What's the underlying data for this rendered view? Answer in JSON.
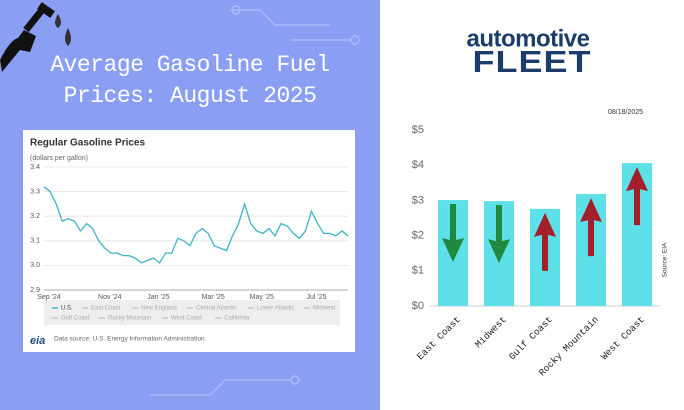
{
  "title": "Average Gasoline Fuel Prices: August 2025",
  "logo": {
    "top": "automotive",
    "bottom": "FLEET"
  },
  "date": "08/18/2025",
  "chart_data": [
    {
      "type": "line",
      "title": "Regular Gasoline Prices",
      "subtitle": "(dollars per gallon)",
      "categories": [
        "Sep '24",
        null,
        null,
        null,
        null,
        null,
        null,
        null,
        null,
        null,
        "Nov '24",
        null,
        null,
        null,
        null,
        null,
        null,
        null,
        "Jan '25",
        null,
        null,
        null,
        null,
        null,
        null,
        null,
        null,
        "Mar '25",
        null,
        null,
        null,
        null,
        null,
        null,
        null,
        "May '25",
        null,
        null,
        null,
        null,
        null,
        null,
        null,
        null,
        "Jul '25",
        null,
        null,
        null,
        null,
        null,
        null
      ],
      "series": [
        {
          "name": "U.S.",
          "color": "#3fb3c9",
          "values": [
            3.32,
            3.3,
            3.25,
            3.18,
            3.19,
            3.18,
            3.14,
            3.17,
            3.15,
            3.1,
            3.07,
            3.05,
            3.05,
            3.04,
            3.04,
            3.03,
            3.01,
            3.02,
            3.03,
            3.01,
            3.05,
            3.05,
            3.11,
            3.1,
            3.08,
            3.13,
            3.15,
            3.13,
            3.08,
            3.07,
            3.06,
            3.12,
            3.17,
            3.25,
            3.17,
            3.14,
            3.13,
            3.15,
            3.12,
            3.17,
            3.16,
            3.13,
            3.11,
            3.14,
            3.22,
            3.17,
            3.13,
            3.13,
            3.12,
            3.14,
            3.12
          ]
        }
      ],
      "inactive_legend": [
        "East Coast",
        "New England",
        "Central Atlantic",
        "Lower Atlantic",
        "Midwest",
        "Gulf Coast",
        "Rocky Mountain",
        "West Coast",
        "California"
      ],
      "inactive_color": "#c8c8c8",
      "ylim": [
        2.9,
        3.4
      ],
      "yticks": [
        2.9,
        {
          "value": 3,
          "label": "3.0"
        },
        3.1,
        3.2,
        3.3,
        3.4
      ],
      "grid": true,
      "source_logo": "eia",
      "source": "Data source: U.S. Energy Information Administration"
    },
    {
      "type": "bar",
      "categories": [
        "East Coast",
        "Midwest",
        "Gulf Coast",
        "Rocky Mountain",
        "West Coast"
      ],
      "values": [
        3.01,
        2.98,
        2.76,
        3.18,
        4.06
      ],
      "color": "#5ee0e8",
      "arrows": [
        "down",
        "down",
        "up",
        "up",
        "up"
      ],
      "arrow_colors": {
        "down": "#1f8a3e",
        "up": "#a3202b"
      },
      "ylim": [
        0,
        5
      ],
      "yticks": [
        {
          "value": 0,
          "label": "$0"
        },
        {
          "value": 1,
          "label": "$1"
        },
        {
          "value": 2,
          "label": "$2"
        },
        {
          "value": 3,
          "label": "$3"
        },
        {
          "value": 4,
          "label": "$4"
        },
        {
          "value": 5,
          "label": "$5"
        }
      ],
      "source": "Source: EIA"
    }
  ]
}
